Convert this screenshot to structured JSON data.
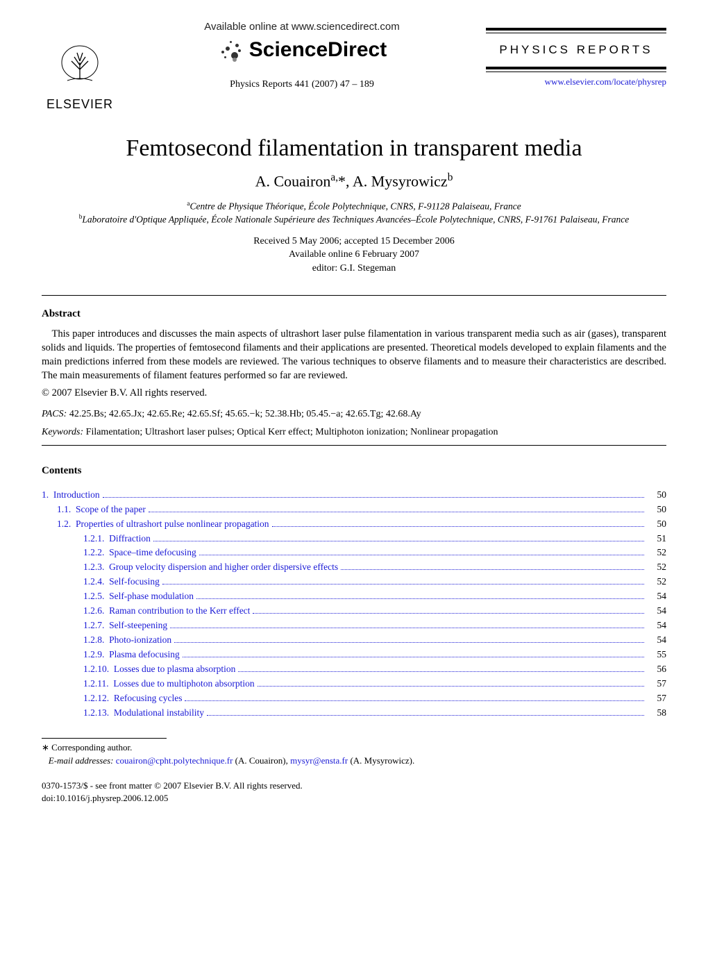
{
  "header": {
    "publisher_logo_text": "ELSEVIER",
    "available_online": "Available online at www.sciencedirect.com",
    "sciencedirect": "ScienceDirect",
    "reference": "Physics Reports  441 (2007) 47 – 189",
    "journal_name": "PHYSICS  REPORTS",
    "journal_url": "www.elsevier.com/locate/physrep"
  },
  "title": "Femtosecond filamentation in transparent media",
  "authors_html": "A. Couairon<sup>a,</sup>*, A. Mysyrowicz<sup>b</sup>",
  "affiliations": [
    {
      "sup": "a",
      "text": "Centre de Physique Théorique, École Polytechnique, CNRS, F-91128 Palaiseau, France"
    },
    {
      "sup": "b",
      "text": "Laboratoire d'Optique Appliquée, École Nationale Supérieure des Techniques Avancées–École Polytechnique, CNRS, F-91761 Palaiseau, France"
    }
  ],
  "dates": {
    "received": "Received 5 May 2006; accepted 15 December 2006",
    "online": "Available online 6 February 2007",
    "editor": "editor: G.I. Stegeman"
  },
  "abstract_heading": "Abstract",
  "abstract_text": "This paper introduces and discusses the main aspects of ultrashort laser pulse filamentation in various transparent media such as air (gases), transparent solids and liquids. The properties of femtosecond filaments and their applications are presented. Theoretical models developed to explain filaments and the main predictions inferred from these models are reviewed. The various techniques to observe filaments and to measure their characteristics are described. The main measurements of filament features performed so far are reviewed.",
  "copyright": "© 2007 Elsevier B.V. All rights reserved.",
  "pacs_label": "PACS:",
  "pacs": "42.25.Bs; 42.65.Jx; 42.65.Re; 42.65.Sf; 45.65.−k; 52.38.Hb; 05.45.−a; 42.65.Tg; 42.68.Ay",
  "keywords_label": "Keywords:",
  "keywords": "Filamentation; Ultrashort laser pulses; Optical Kerr effect; Multiphoton ionization; Nonlinear propagation",
  "contents_heading": "Contents",
  "toc": [
    {
      "num": "1.",
      "label": "Introduction",
      "page": "50",
      "indent": 0
    },
    {
      "num": "1.1.",
      "label": "Scope of the paper",
      "page": "50",
      "indent": 1
    },
    {
      "num": "1.2.",
      "label": "Properties of ultrashort pulse nonlinear propagation",
      "page": "50",
      "indent": 1
    },
    {
      "num": "1.2.1.",
      "label": "Diffraction",
      "page": "51",
      "indent": 2
    },
    {
      "num": "1.2.2.",
      "label": "Space–time defocusing",
      "page": "52",
      "indent": 2
    },
    {
      "num": "1.2.3.",
      "label": "Group velocity dispersion and higher order dispersive effects",
      "page": "52",
      "indent": 2
    },
    {
      "num": "1.2.4.",
      "label": "Self-focusing",
      "page": "52",
      "indent": 2
    },
    {
      "num": "1.2.5.",
      "label": "Self-phase modulation",
      "page": "54",
      "indent": 2
    },
    {
      "num": "1.2.6.",
      "label": "Raman contribution to the Kerr effect",
      "page": "54",
      "indent": 2
    },
    {
      "num": "1.2.7.",
      "label": "Self-steepening",
      "page": "54",
      "indent": 2
    },
    {
      "num": "1.2.8.",
      "label": "Photo-ionization",
      "page": "54",
      "indent": 2
    },
    {
      "num": "1.2.9.",
      "label": "Plasma defocusing",
      "page": "55",
      "indent": 2
    },
    {
      "num": "1.2.10.",
      "label": "Losses due to plasma absorption",
      "page": "56",
      "indent": 2
    },
    {
      "num": "1.2.11.",
      "label": "Losses due to multiphoton absorption",
      "page": "57",
      "indent": 2
    },
    {
      "num": "1.2.12.",
      "label": "Refocusing cycles",
      "page": "57",
      "indent": 2
    },
    {
      "num": "1.2.13.",
      "label": "Modulational instability",
      "page": "58",
      "indent": 2
    }
  ],
  "footnote": {
    "corr": "∗ Corresponding author.",
    "email_label": "E-mail addresses:",
    "email1": "couairon@cpht.polytechnique.fr",
    "email1_paren": "(A. Couairon),",
    "email2": "mysyr@ensta.fr",
    "email2_paren": "(A. Mysyrowicz)."
  },
  "footer": {
    "line1": "0370-1573/$ - see front matter © 2007 Elsevier B.V. All rights reserved.",
    "line2": "doi:10.1016/j.physrep.2006.12.005"
  },
  "colors": {
    "link": "#1a1ad6",
    "text": "#000000",
    "background": "#ffffff"
  }
}
